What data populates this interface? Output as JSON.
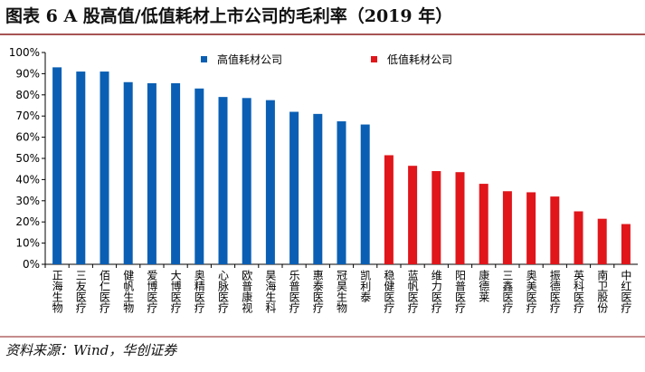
{
  "chart_data": {
    "type": "bar",
    "title": "图表 6 A 股高值/低值耗材上市公司的毛利率（2019 年）",
    "source": "资料来源：Wind，华创证券",
    "categories": [
      "正海生物",
      "三友医疗",
      "佰仁医疗",
      "健帆生物",
      "爱博医疗",
      "大博医疗",
      "奥精医疗",
      "心脉医疗",
      "欧普康视",
      "昊海生科",
      "乐普医疗",
      "惠泰医疗",
      "冠昊生物",
      "凯利泰",
      "稳健医疗",
      "蓝帆医疗",
      "维力医疗",
      "阳普医疗",
      "康德莱",
      "三鑫医疗",
      "奥美医疗",
      "振德医疗",
      "英科医疗",
      "南卫股份",
      "中红医疗"
    ],
    "series": [
      {
        "name": "高值耗材公司",
        "color": "#0a5fb4",
        "values": [
          93,
          91,
          91,
          86,
          85.5,
          85.5,
          83,
          79,
          78.5,
          77.5,
          72,
          71,
          67.5,
          66,
          null,
          null,
          null,
          null,
          null,
          null,
          null,
          null,
          null,
          null,
          null
        ]
      },
      {
        "name": "低值耗材公司",
        "color": "#e0161b",
        "values": [
          null,
          null,
          null,
          null,
          null,
          null,
          null,
          null,
          null,
          null,
          null,
          null,
          null,
          null,
          51.5,
          46.5,
          44,
          43.5,
          38,
          34.5,
          34,
          32,
          25,
          21.5,
          19
        ]
      }
    ],
    "ylim": [
      0,
      100
    ],
    "yticks": [
      {
        "value": 0,
        "label": "0%"
      },
      {
        "value": 10,
        "label": "10%"
      },
      {
        "value": 20,
        "label": "20%"
      },
      {
        "value": 30,
        "label": "30%"
      },
      {
        "value": 40,
        "label": "40%"
      },
      {
        "value": 50,
        "label": "50%"
      },
      {
        "value": 60,
        "label": "60%"
      },
      {
        "value": 70,
        "label": "70%"
      },
      {
        "value": 80,
        "label": "80%"
      },
      {
        "value": 90,
        "label": "90%"
      },
      {
        "value": 100,
        "label": "100%"
      }
    ]
  }
}
